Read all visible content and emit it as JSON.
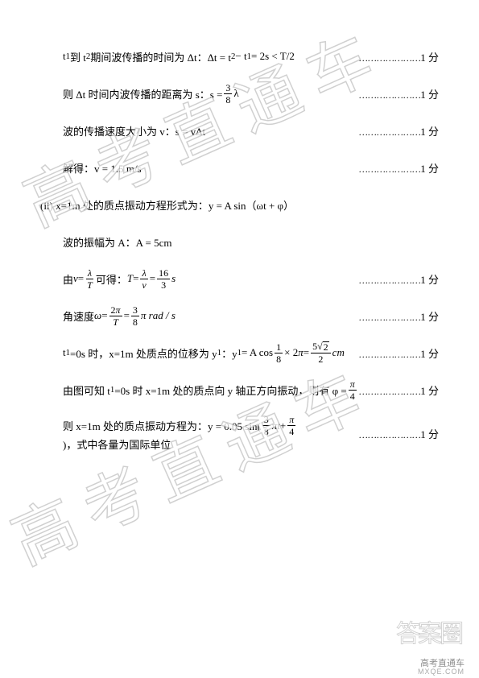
{
  "watermark_text": "高考直通车",
  "lines": [
    {
      "content_html": "t<sub>1</sub> 到 t<sub>2</sub> 期间波传播的时间为 Δt：Δt = t<sub>2</sub> − t<sub>1</sub> = 2s &lt; T/2",
      "score": "1 分",
      "outdent": false
    },
    {
      "content_html": "则 Δt 时间内波传播的距离为 s：s = <span class='frac'><span class='num'>3</span><span class='den'>8</span></span> λ",
      "score": "1 分",
      "outdent": false
    },
    {
      "content_html": "波的传播速度大小为 v：s = vΔt",
      "score": "1 分",
      "outdent": false
    },
    {
      "content_html": "解得：v = 1.5 m/s",
      "score": "1 分",
      "outdent": false
    },
    {
      "content_html": "(ii) x=1m 处的质点振动方程形式为：y = A sin（ωt + φ）",
      "score": "",
      "outdent": true
    },
    {
      "content_html": "波的振幅为 A：A = 5cm",
      "score": "",
      "outdent": false
    },
    {
      "content_html": "由 <span class='italic'>v</span> = <span class='frac'><span class='num italic'>λ</span><span class='den italic'>T</span></span> 可得：<span class='italic'>T</span> = <span class='frac'><span class='num italic'>λ</span><span class='den italic'>v</span></span> = <span class='frac'><span class='num'>16</span><span class='den'>3</span></span> <span class='italic'>s</span>",
      "score": "1 分",
      "outdent": false
    },
    {
      "content_html": "角速度 <span class='italic'>ω</span> = <span class='frac'><span class='num'>2<span class='italic'>π</span></span><span class='den italic'>T</span></span> = <span class='frac'><span class='num'>3</span><span class='den'>8</span></span> <span class='italic'>π rad / s</span>",
      "score": "1 分",
      "outdent": false
    },
    {
      "content_html": "t<sub>1</sub>=0s 时，x=1m 处质点的位移为 y<sub>1</sub>：y<sub>1</sub> = A cos <span class='frac'><span class='num'>1</span><span class='den'>8</span></span> × 2<span class='italic'>π</span> = <span class='frac'><span class='num'>5<span class='sqrt'><span class='sqrt-sign'>√</span><span class='sqrt-body'>2</span></span></span><span class='den'>2</span></span> <span class='italic'>cm</span>",
      "score": "1 分",
      "outdent": false
    },
    {
      "content_html": "由图可知 t<sub>1</sub>=0s 时 x=1m 处的质点向 y 轴正方向振动，则有 φ = <span class='frac'><span class='num italic'>π</span><span class='den'>4</span></span>",
      "score": "1 分",
      "outdent": false
    },
    {
      "content_html": "则 x=1m 处的质点振动方程为：y = 0.05 sin( <span class='frac'><span class='num'>3</span><span class='den'>8</span></span> <span class='italic'>πt</span> + <span class='frac'><span class='num italic'>π</span><span class='den'>4</span></span> )，式中各量为国际单位",
      "score": "1 分",
      "outdent": false
    }
  ],
  "footer": {
    "logo_text": "答案圈",
    "caption_main": "高考直通车",
    "caption_sub": "MXQE.COM"
  },
  "colors": {
    "text": "#000000",
    "background": "#ffffff",
    "watermark_stroke": "rgba(120,120,120,0.35)",
    "footer_gray": "rgba(80,80,80,0.65)"
  }
}
